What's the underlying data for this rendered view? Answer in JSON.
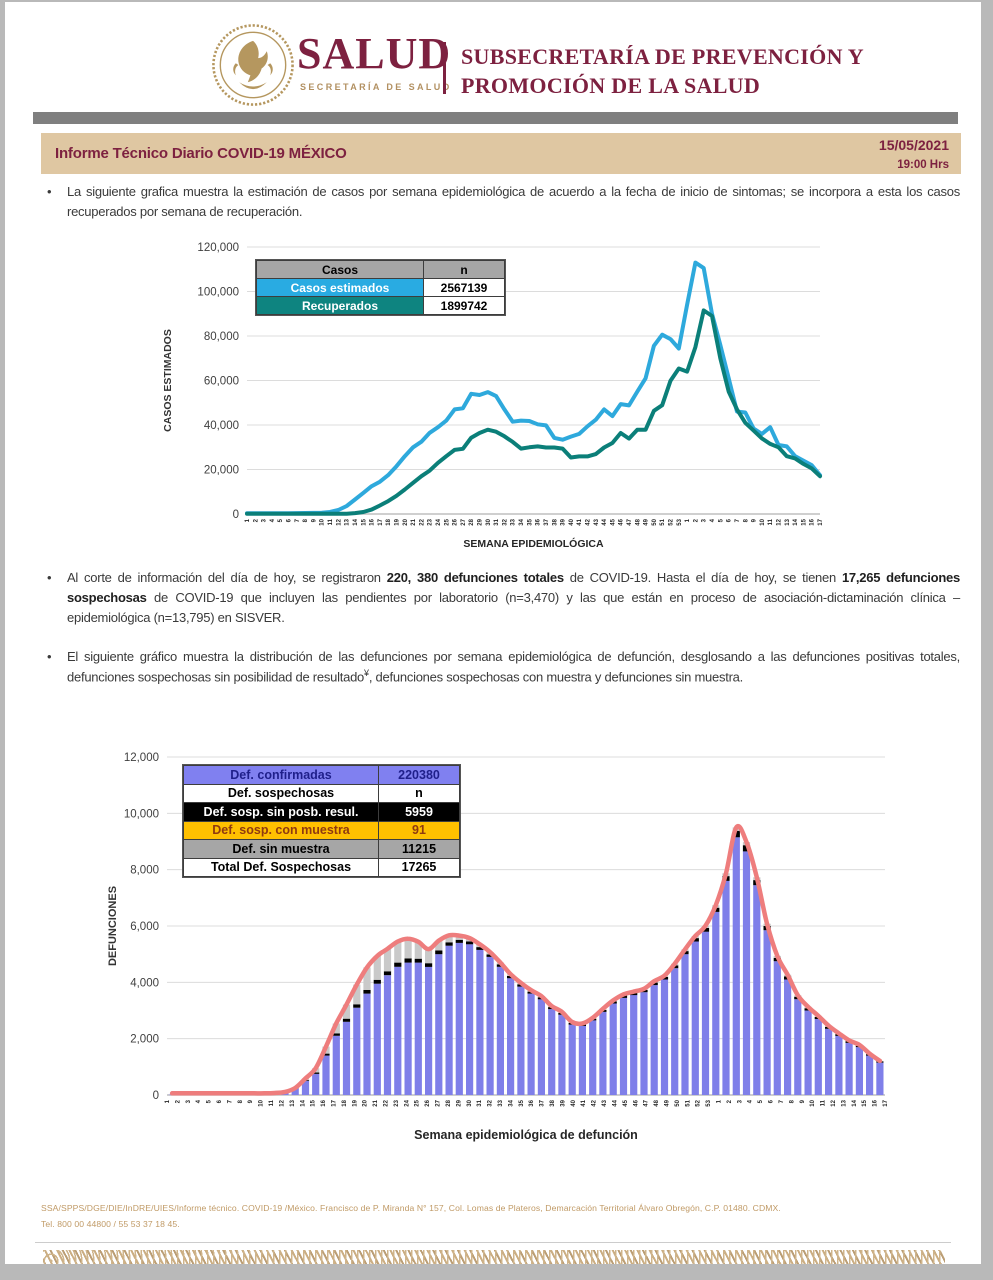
{
  "header": {
    "logo_word": "SALUD",
    "logo_sub": "SECRETARÍA DE SALUD",
    "subsecretaria": "SUBSECRETARÍA DE PREVENCIÓN Y PROMOCIÓN DE LA SALUD",
    "emblem_icon": "mexico-eagle-seal-icon",
    "colors": {
      "maroon": "#7d2140",
      "gold": "#b29061"
    }
  },
  "title_bar": {
    "title": "Informe Técnico Diario COVID-19 MÉXICO",
    "date": "15/05/2021",
    "time": "19:00 Hrs",
    "bg": "#dfc7a2"
  },
  "bullets": {
    "b1": "La siguiente grafica muestra la estimación de casos por semana epidemiológica de acuerdo a la fecha de inicio de sintomas; se incorpora a esta los casos recuperados por semana de recuperación.",
    "b2_t1": "Al corte de información del día de hoy, se registraron ",
    "b2_bold1": "220, 380 defunciones totales",
    "b2_t2": " de COVID-19. Hasta el día de hoy, se tienen ",
    "b2_bold2": "17,265 defunciones sospechosas",
    "b2_t3": " de COVID-19 que incluyen las pendientes por laboratorio (n=3,470) y las que están en proceso de asociación-dictaminación clínica – epidemiológica (n=13,795) en SISVER.",
    "b3_t1": "El siguiente gráfico muestra la distribución de las defunciones por semana epidemiológica de defunción, desglosando a las defunciones positivas totales, defunciones sospechosas sin posibilidad de resultado",
    "b3_sup": "¥",
    "b3_t2": ", defunciones sospechosas con muestra y defunciones sin muestra."
  },
  "footer": {
    "line1": "SSA/SPPS/DGE/DIE/InDRE/UIES/Informe técnico. COVID-19 /México. Francisco de P. Miranda N° 157, Col. Lomas de Plateros, Demarcación Territorial Álvaro Obregón, C.P. 01480. CDMX.",
    "line2": "Tel. 800 00 44800 / 55 53 37 18 45."
  },
  "chart_data": [
    {
      "type": "line",
      "ylabel": "CASOS ESTIMADOS",
      "xlabel": "SEMANA EPIDEMIOLÓGICA",
      "ylim": [
        0,
        120000
      ],
      "ytick_step": 20000,
      "grid": true,
      "legend_position": "top-left",
      "categories": [
        "1",
        "2",
        "3",
        "4",
        "5",
        "6",
        "7",
        "8",
        "9",
        "10",
        "11",
        "12",
        "13",
        "14",
        "15",
        "16",
        "17",
        "18",
        "19",
        "20",
        "21",
        "22",
        "23",
        "24",
        "25",
        "26",
        "27",
        "28",
        "29",
        "30",
        "31",
        "32",
        "33",
        "34",
        "35",
        "36",
        "37",
        "38",
        "39",
        "40",
        "41",
        "42",
        "43",
        "44",
        "45",
        "46",
        "47",
        "48",
        "49",
        "50",
        "51",
        "52",
        "53",
        "1",
        "2",
        "3",
        "4",
        "5",
        "6",
        "7",
        "8",
        "9",
        "10",
        "11",
        "12",
        "13",
        "14",
        "15",
        "16",
        "17"
      ],
      "legend": {
        "header": [
          "Casos",
          "n"
        ],
        "header_bg": "#a6a6a6",
        "rows": [
          {
            "label": "Casos estimados",
            "value": "2567139",
            "label_bg": "#29abe2",
            "label_fg": "#ffffff"
          },
          {
            "label": "Recuperados",
            "value": "1899742",
            "label_bg": "#0e8480",
            "label_fg": "#ffffff"
          }
        ]
      },
      "series": [
        {
          "name": "Casos estimados",
          "color": "#2ea9dc",
          "values": [
            300,
            300,
            300,
            300,
            300,
            350,
            400,
            450,
            500,
            600,
            900,
            1800,
            3600,
            6500,
            9500,
            12500,
            14500,
            17500,
            21500,
            26000,
            30000,
            32500,
            36500,
            39000,
            42000,
            47000,
            47500,
            54000,
            53500,
            54800,
            53000,
            47000,
            41500,
            42000,
            41800,
            40300,
            39800,
            34200,
            33400,
            34800,
            36000,
            39400,
            42400,
            47000,
            44000,
            49400,
            48800,
            55000,
            61000,
            75600,
            80600,
            78600,
            74400,
            94000,
            113000,
            110500,
            90000,
            76000,
            61000,
            46000,
            45600,
            38400,
            36000,
            39000,
            31000,
            30400,
            26000,
            24000,
            22000,
            17500
          ]
        },
        {
          "name": "Recuperados",
          "color": "#0b7f79",
          "values": [
            150,
            150,
            150,
            150,
            150,
            150,
            150,
            150,
            150,
            150,
            150,
            150,
            150,
            400,
            900,
            2000,
            3800,
            5800,
            8200,
            11000,
            14000,
            17000,
            19500,
            23000,
            26000,
            28800,
            29300,
            34300,
            36400,
            37900,
            37000,
            34900,
            32400,
            29400,
            30000,
            30400,
            29900,
            29900,
            29400,
            25400,
            25900,
            25900,
            26900,
            29900,
            31900,
            36400,
            33900,
            37900,
            37900,
            46400,
            48900,
            59900,
            65400,
            64000,
            75000,
            91500,
            89000,
            70000,
            55000,
            47000,
            41000,
            37500,
            34000,
            31500,
            30000,
            26000,
            25000,
            22500,
            20500,
            17000
          ]
        }
      ]
    },
    {
      "type": "bar",
      "ylabel": "DEFUNCIONES",
      "xlabel": "Semana epidemiológica de defunción",
      "ylim": [
        0,
        12000
      ],
      "ytick_step": 2000,
      "grid": true,
      "legend_position": "top-left",
      "categories": [
        "1",
        "2",
        "3",
        "4",
        "5",
        "6",
        "7",
        "8",
        "9",
        "10",
        "11",
        "12",
        "13",
        "14",
        "15",
        "16",
        "17",
        "18",
        "19",
        "20",
        "21",
        "22",
        "23",
        "24",
        "25",
        "26",
        "27",
        "28",
        "29",
        "30",
        "31",
        "32",
        "33",
        "34",
        "35",
        "36",
        "37",
        "38",
        "39",
        "40",
        "41",
        "42",
        "43",
        "44",
        "45",
        "46",
        "47",
        "48",
        "49",
        "50",
        "51",
        "52",
        "53",
        "1",
        "2",
        "3",
        "4",
        "5",
        "6",
        "7",
        "8",
        "9",
        "10",
        "11",
        "12",
        "13",
        "14",
        "15",
        "16",
        "17"
      ],
      "legend": {
        "rows": [
          {
            "label": "Def. confirmadas",
            "value": "220380",
            "bg": "#8080f0",
            "fg": "#1f1f8a"
          },
          {
            "label": "Def. sospechosas",
            "value": "n",
            "bg": "#ffffff",
            "fg": "#000000"
          },
          {
            "label": "Def. sosp. sin posb. resul.",
            "value": "5959",
            "bg": "#000000",
            "fg": "#ffffff"
          },
          {
            "label": "Def. sosp. con  muestra",
            "value": "91",
            "bg": "#ffc000",
            "fg": "#8f3a10"
          },
          {
            "label": "Def. sin muestra",
            "value": "11215",
            "bg": "#a6a6a6",
            "fg": "#000000"
          },
          {
            "label": "Total Def. Sospechosas",
            "value": "17265",
            "bg": "#ffffff",
            "fg": "#000000"
          }
        ]
      },
      "series": [
        {
          "name": "Def. confirmadas",
          "color": "#7f7fe9",
          "values": [
            10,
            12,
            15,
            18,
            22,
            26,
            30,
            35,
            40,
            50,
            70,
            110,
            250,
            500,
            750,
            1400,
            2100,
            2600,
            3100,
            3600,
            3950,
            4250,
            4550,
            4700,
            4700,
            4550,
            5000,
            5300,
            5400,
            5350,
            5150,
            4900,
            4550,
            4150,
            3850,
            3600,
            3400,
            3050,
            2850,
            2500,
            2450,
            2650,
            2950,
            3250,
            3450,
            3550,
            3650,
            3900,
            4100,
            4500,
            5000,
            5450,
            5800,
            6500,
            7600,
            9150,
            8650,
            7450,
            5850,
            4750,
            4100,
            3400,
            3000,
            2700,
            2350,
            2100,
            1850,
            1700,
            1400,
            1150
          ]
        },
        {
          "name": "Def. sosp. sin posb. resul.",
          "color": "#000000",
          "values": [
            0,
            0,
            0,
            0,
            0,
            0,
            0,
            0,
            0,
            0,
            0,
            0,
            0,
            30,
            50,
            70,
            90,
            110,
            120,
            130,
            140,
            140,
            150,
            150,
            140,
            130,
            130,
            120,
            110,
            100,
            100,
            90,
            90,
            80,
            80,
            70,
            70,
            70,
            60,
            60,
            60,
            60,
            70,
            70,
            80,
            80,
            80,
            90,
            90,
            100,
            110,
            120,
            130,
            150,
            170,
            230,
            220,
            180,
            150,
            120,
            110,
            90,
            80,
            70,
            70,
            60,
            60,
            50,
            50,
            40
          ]
        },
        {
          "name": "Def. sin muestra",
          "color": "#c9c9c9",
          "values": [
            0,
            0,
            0,
            0,
            0,
            0,
            0,
            0,
            0,
            0,
            0,
            0,
            0,
            60,
            150,
            250,
            350,
            500,
            700,
            800,
            850,
            800,
            750,
            700,
            600,
            500,
            350,
            250,
            150,
            120,
            100,
            80,
            60,
            60,
            50,
            50,
            40,
            40,
            40,
            30,
            30,
            30,
            40,
            40,
            40,
            40,
            40,
            50,
            50,
            60,
            60,
            70,
            80,
            90,
            100,
            120,
            110,
            100,
            80,
            70,
            60,
            50,
            50,
            40,
            40,
            30,
            30,
            30,
            20,
            20
          ]
        }
      ],
      "total_line": {
        "name": "Total defunciones (línea)",
        "color": "#ee7d7d"
      }
    }
  ]
}
